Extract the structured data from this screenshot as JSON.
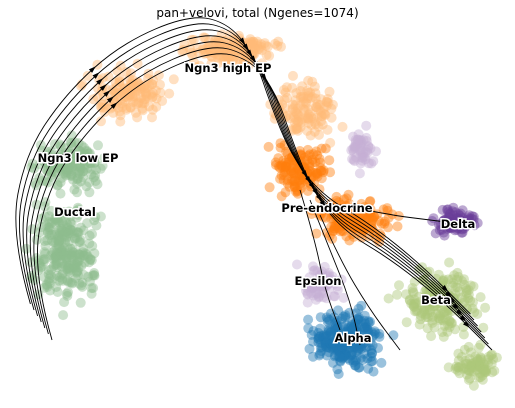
{
  "chart_data": {
    "type": "scatter",
    "title": "pan+velovi, total (Ngenes=1074)",
    "xlabel": "",
    "ylabel": "",
    "axes_visible": false,
    "grid": false,
    "legend": "on data",
    "overlay": "velocity streamlines with arrowheads",
    "clusters": [
      {
        "name": "Ngn3 low EP",
        "color": "#8fbc8f"
      },
      {
        "name": "Ductal",
        "color": "#8fbc8f"
      },
      {
        "name": "Ngn3 high EP",
        "color": "#ffbb78"
      },
      {
        "name": "Pre-endocrine",
        "color": "#ff7f0e"
      },
      {
        "name": "Delta",
        "color": "#6a3d9a"
      },
      {
        "name": "Epsilon",
        "color": "#c5b0d5"
      },
      {
        "name": "Alpha",
        "color": "#1f77b4"
      },
      {
        "name": "Beta",
        "color": "#aec77a"
      }
    ]
  }
}
